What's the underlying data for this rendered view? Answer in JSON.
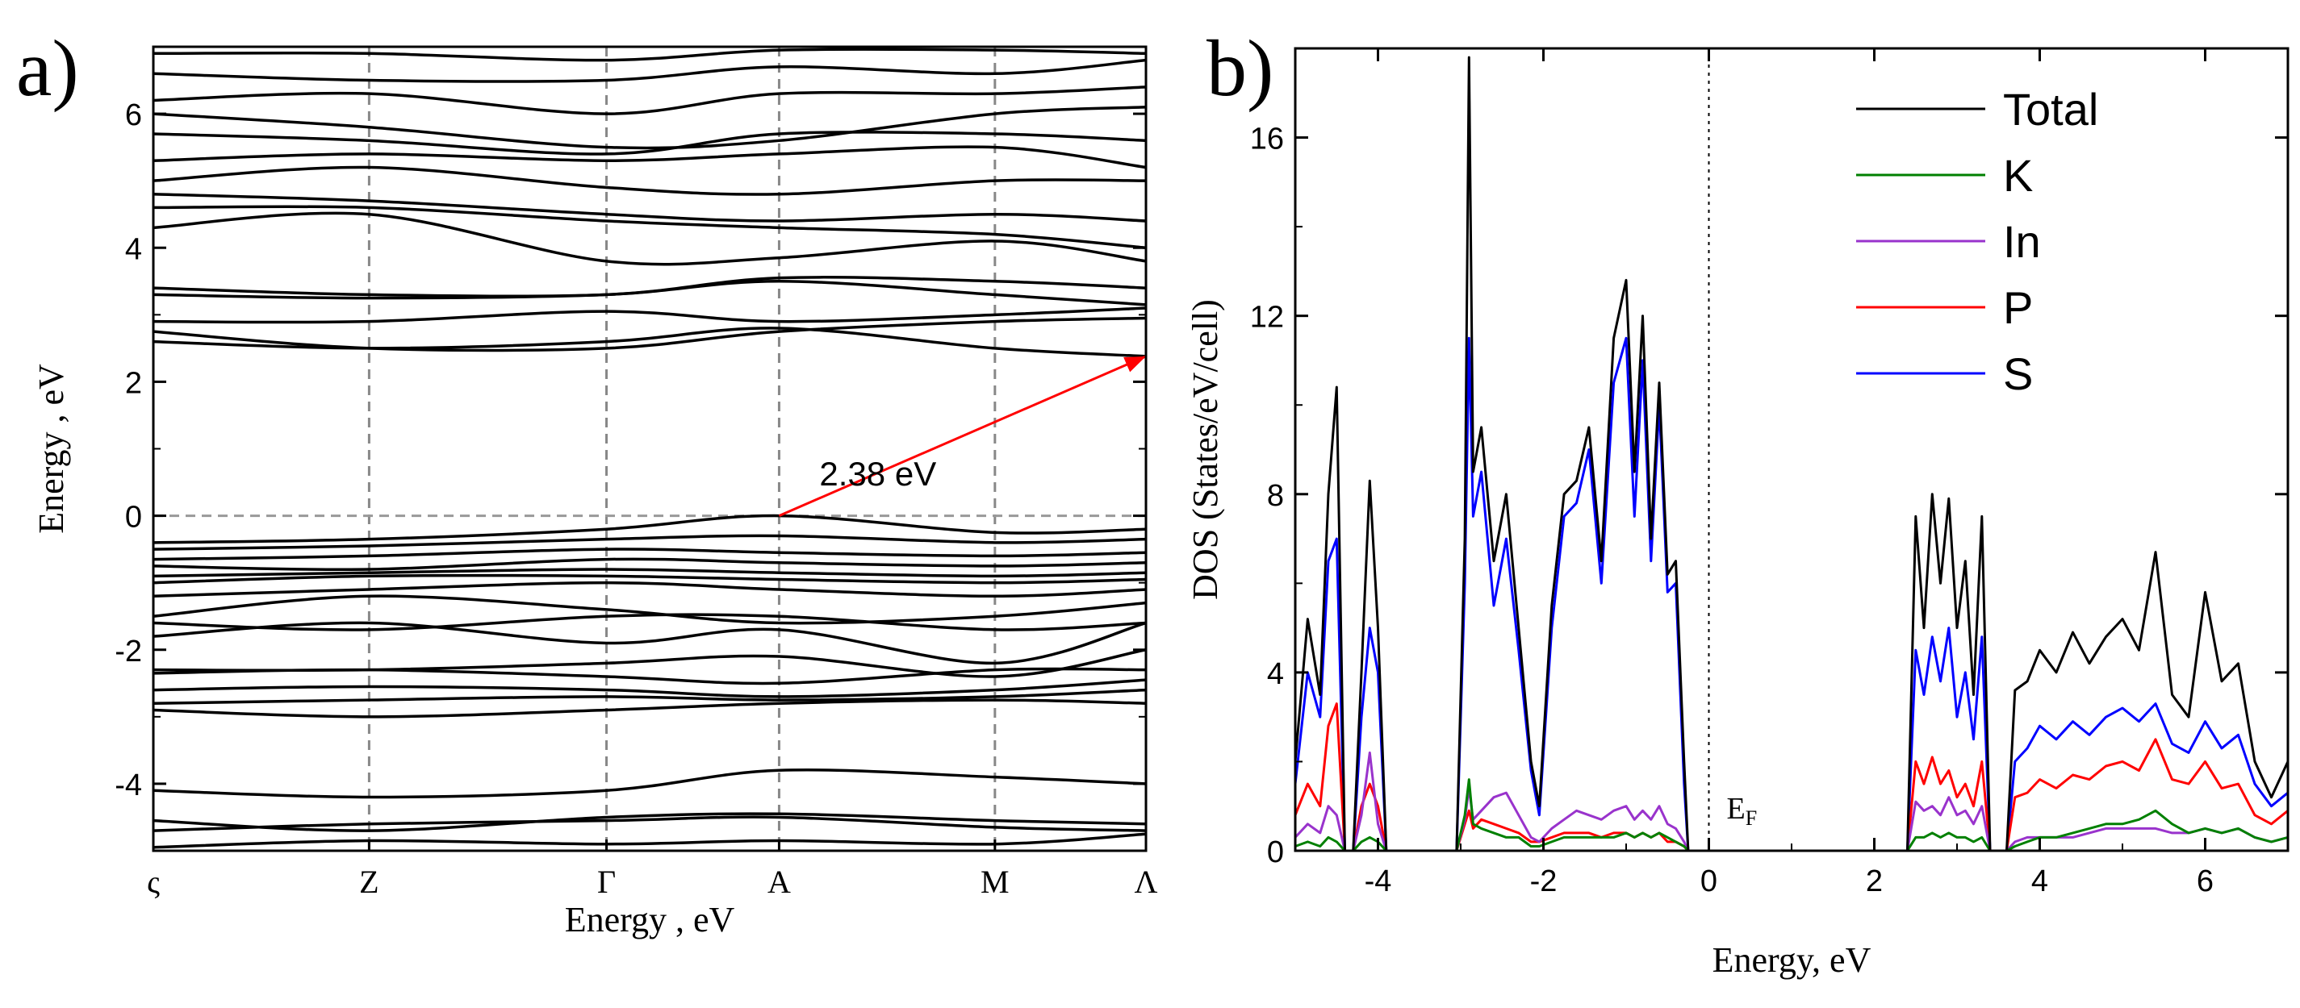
{
  "chart_data": [
    {
      "panel": "a)",
      "type": "line",
      "title": "",
      "xlabel": "Energy , eV",
      "ylabel": "Energy , eV",
      "ylim": [
        -5,
        7
      ],
      "yticks": [
        -4,
        -2,
        0,
        2,
        4,
        6
      ],
      "ytick_labels": [
        "-4",
        "-2",
        "0",
        "2",
        "4",
        "6"
      ],
      "k_points": [
        "ς",
        "Z",
        "Γ",
        "A",
        "M",
        "Λ"
      ],
      "k_positions": [
        0,
        1,
        2.1,
        2.9,
        3.9,
        4.6
      ],
      "gap_annotation": {
        "label": "2.38 eV",
        "from": [
          2.9,
          0.0
        ],
        "to": [
          4.6,
          2.38
        ],
        "color": "#ff0000"
      },
      "fermi_level": 0,
      "bands": [
        [
          -4.95,
          -4.85,
          -4.9,
          -4.85,
          -4.9,
          -4.75
        ],
        [
          -4.7,
          -4.6,
          -4.55,
          -4.5,
          -4.65,
          -4.7
        ],
        [
          -4.55,
          -4.7,
          -4.5,
          -4.45,
          -4.55,
          -4.6
        ],
        [
          -4.1,
          -4.2,
          -4.1,
          -3.8,
          -3.9,
          -4.0
        ],
        [
          -2.9,
          -3.0,
          -2.9,
          -2.8,
          -2.75,
          -2.8
        ],
        [
          -2.8,
          -2.75,
          -2.7,
          -2.75,
          -2.7,
          -2.6
        ],
        [
          -2.6,
          -2.55,
          -2.6,
          -2.7,
          -2.6,
          -2.45
        ],
        [
          -2.35,
          -2.3,
          -2.4,
          -2.5,
          -2.3,
          -2.3
        ],
        [
          -2.3,
          -2.3,
          -2.2,
          -2.1,
          -2.4,
          -2.0
        ],
        [
          -1.8,
          -1.6,
          -1.9,
          -1.7,
          -2.2,
          -1.6
        ],
        [
          -1.6,
          -1.7,
          -1.5,
          -1.5,
          -1.7,
          -1.6
        ],
        [
          -1.5,
          -1.2,
          -1.4,
          -1.6,
          -1.5,
          -1.3
        ],
        [
          -1.2,
          -1.1,
          -1.0,
          -1.1,
          -1.2,
          -1.1
        ],
        [
          -1.0,
          -0.9,
          -0.9,
          -0.95,
          -1.0,
          -0.95
        ],
        [
          -0.9,
          -0.85,
          -0.8,
          -0.85,
          -0.9,
          -0.85
        ],
        [
          -0.75,
          -0.8,
          -0.65,
          -0.7,
          -0.75,
          -0.7
        ],
        [
          -0.65,
          -0.6,
          -0.5,
          -0.55,
          -0.6,
          -0.55
        ],
        [
          -0.5,
          -0.45,
          -0.35,
          -0.3,
          -0.4,
          -0.35
        ],
        [
          -0.4,
          -0.35,
          -0.2,
          0.0,
          -0.25,
          -0.2
        ],
        [
          2.6,
          2.5,
          2.6,
          2.8,
          2.5,
          2.38
        ],
        [
          2.75,
          2.5,
          2.5,
          2.75,
          2.9,
          2.95
        ],
        [
          2.9,
          2.9,
          3.05,
          2.9,
          3.0,
          3.1
        ],
        [
          3.3,
          3.25,
          3.3,
          3.5,
          3.3,
          3.15
        ],
        [
          3.4,
          3.3,
          3.3,
          3.55,
          3.5,
          3.4
        ],
        [
          4.3,
          4.5,
          3.8,
          3.85,
          4.1,
          3.8
        ],
        [
          4.6,
          4.6,
          4.4,
          4.3,
          4.2,
          4.0
        ],
        [
          4.8,
          4.7,
          4.5,
          4.4,
          4.5,
          4.4
        ],
        [
          5.0,
          5.2,
          4.9,
          4.8,
          5.0,
          5.0
        ],
        [
          5.3,
          5.4,
          5.3,
          5.4,
          5.5,
          5.2
        ],
        [
          5.7,
          5.6,
          5.4,
          5.7,
          5.7,
          5.6
        ],
        [
          6.0,
          5.8,
          5.5,
          5.6,
          6.0,
          6.1
        ],
        [
          6.2,
          6.3,
          6.0,
          6.3,
          6.3,
          6.4
        ],
        [
          6.6,
          6.5,
          6.5,
          6.7,
          6.6,
          6.8
        ],
        [
          6.9,
          6.9,
          6.8,
          6.95,
          6.95,
          6.9
        ]
      ]
    },
    {
      "panel": "b)",
      "type": "line",
      "title": "",
      "xlabel": "Energy, eV",
      "ylabel": "DOS (States/eV/cell)",
      "xlim": [
        -5,
        7
      ],
      "ylim": [
        0,
        18
      ],
      "xticks": [
        -4,
        -2,
        0,
        2,
        4,
        6
      ],
      "xtick_labels": [
        "-4",
        "-2",
        "0",
        "2",
        "4",
        "6"
      ],
      "yticks": [
        0,
        4,
        8,
        12,
        16
      ],
      "ytick_labels": [
        "0",
        "4",
        "8",
        "12",
        "16"
      ],
      "fermi_label": "E",
      "fermi_label_sub": "F",
      "legend_position": "top-right",
      "x": [
        -5.0,
        -4.85,
        -4.7,
        -4.6,
        -4.5,
        -4.4,
        -4.3,
        -4.2,
        -4.1,
        -4.0,
        -3.9,
        -3.8,
        -3.2,
        -3.05,
        -2.95,
        -2.9,
        -2.85,
        -2.75,
        -2.6,
        -2.45,
        -2.3,
        -2.15,
        -2.05,
        -1.9,
        -1.75,
        -1.6,
        -1.45,
        -1.3,
        -1.15,
        -1.0,
        -0.9,
        -0.8,
        -0.7,
        -0.6,
        -0.5,
        -0.4,
        -0.3,
        -0.25,
        2.3,
        2.4,
        2.5,
        2.6,
        2.7,
        2.8,
        2.9,
        3.0,
        3.1,
        3.2,
        3.3,
        3.4,
        3.6,
        3.7,
        3.85,
        4.0,
        4.2,
        4.4,
        4.6,
        4.8,
        5.0,
        5.2,
        5.4,
        5.6,
        5.8,
        6.0,
        6.2,
        6.4,
        6.6,
        6.8,
        7.0
      ],
      "series": [
        {
          "name": "Total",
          "color": "#000000",
          "values": [
            2.0,
            5.2,
            3.5,
            8.0,
            10.4,
            0,
            0,
            4.0,
            8.3,
            5.0,
            0,
            0,
            0,
            0,
            7.0,
            17.8,
            8.5,
            9.5,
            6.5,
            8.0,
            5.0,
            2.0,
            1.0,
            5.5,
            8.0,
            8.3,
            9.5,
            6.5,
            11.5,
            12.8,
            8.5,
            12.0,
            7.0,
            10.5,
            6.2,
            6.5,
            2.0,
            0,
            0,
            0,
            7.5,
            5.0,
            8.0,
            6.0,
            7.9,
            5.0,
            6.5,
            3.5,
            7.5,
            0,
            0,
            3.6,
            3.8,
            4.5,
            4.0,
            4.9,
            4.2,
            4.8,
            5.2,
            4.5,
            6.7,
            3.5,
            3.0,
            5.8,
            3.8,
            4.2,
            2.0,
            1.2,
            2.0
          ]
        },
        {
          "name": "K",
          "color": "#008000",
          "values": [
            0.1,
            0.2,
            0.1,
            0.3,
            0.2,
            0,
            0,
            0.2,
            0.3,
            0.2,
            0,
            0,
            0,
            0,
            0.8,
            1.6,
            0.6,
            0.5,
            0.4,
            0.3,
            0.3,
            0.1,
            0.1,
            0.2,
            0.3,
            0.3,
            0.3,
            0.3,
            0.3,
            0.4,
            0.3,
            0.4,
            0.3,
            0.4,
            0.3,
            0.2,
            0.1,
            0,
            0,
            0,
            0.3,
            0.3,
            0.4,
            0.3,
            0.4,
            0.3,
            0.3,
            0.2,
            0.3,
            0,
            0,
            0.1,
            0.2,
            0.3,
            0.3,
            0.4,
            0.5,
            0.6,
            0.6,
            0.7,
            0.9,
            0.6,
            0.4,
            0.5,
            0.4,
            0.5,
            0.3,
            0.2,
            0.3
          ]
        },
        {
          "name": "In",
          "color": "#9933cc",
          "values": [
            0.3,
            0.6,
            0.4,
            1.0,
            0.8,
            0,
            0,
            0.8,
            2.2,
            0.6,
            0,
            0,
            0,
            0,
            0.7,
            1.4,
            0.7,
            0.9,
            1.2,
            1.3,
            0.8,
            0.3,
            0.2,
            0.5,
            0.7,
            0.9,
            0.8,
            0.7,
            0.9,
            1.0,
            0.7,
            0.9,
            0.7,
            1.0,
            0.6,
            0.5,
            0.2,
            0,
            0,
            0,
            1.1,
            0.9,
            1.0,
            0.8,
            1.2,
            0.8,
            0.9,
            0.6,
            1.0,
            0,
            0,
            0.2,
            0.3,
            0.3,
            0.3,
            0.3,
            0.4,
            0.5,
            0.5,
            0.5,
            0.5,
            0.4,
            0.4,
            0.5,
            0.4,
            0.5,
            0.3,
            0.2,
            0.3
          ]
        },
        {
          "name": "P",
          "color": "#ff0000",
          "values": [
            0.8,
            1.5,
            1.0,
            2.8,
            3.3,
            0,
            0,
            1.0,
            1.5,
            1.0,
            0,
            0,
            0,
            0,
            0.6,
            0.9,
            0.5,
            0.7,
            0.6,
            0.5,
            0.4,
            0.2,
            0.2,
            0.3,
            0.4,
            0.4,
            0.4,
            0.3,
            0.4,
            0.4,
            0.3,
            0.4,
            0.3,
            0.4,
            0.2,
            0.2,
            0.1,
            0,
            0,
            0,
            2.0,
            1.5,
            2.1,
            1.5,
            1.8,
            1.2,
            1.5,
            1.0,
            2.0,
            0,
            0,
            1.2,
            1.3,
            1.6,
            1.4,
            1.7,
            1.6,
            1.9,
            2.0,
            1.8,
            2.5,
            1.6,
            1.5,
            2.0,
            1.4,
            1.5,
            0.8,
            0.6,
            0.9
          ]
        },
        {
          "name": "S",
          "color": "#0000ff",
          "values": [
            1.5,
            4.0,
            3.0,
            6.5,
            7.0,
            0,
            0,
            3.0,
            5.0,
            4.0,
            0,
            0,
            0,
            0,
            6.0,
            11.5,
            7.5,
            8.5,
            5.5,
            7.0,
            4.5,
            1.8,
            0.8,
            5.0,
            7.5,
            7.8,
            9.0,
            6.0,
            10.5,
            11.5,
            7.5,
            11.0,
            6.5,
            10.0,
            5.8,
            6.0,
            1.5,
            0,
            0,
            0,
            4.5,
            3.5,
            4.8,
            3.8,
            5.0,
            3.0,
            4.0,
            2.5,
            4.8,
            0,
            0,
            2.0,
            2.3,
            2.8,
            2.5,
            2.9,
            2.6,
            3.0,
            3.2,
            2.9,
            3.3,
            2.4,
            2.2,
            2.9,
            2.3,
            2.6,
            1.5,
            1.0,
            1.3
          ]
        }
      ]
    }
  ]
}
